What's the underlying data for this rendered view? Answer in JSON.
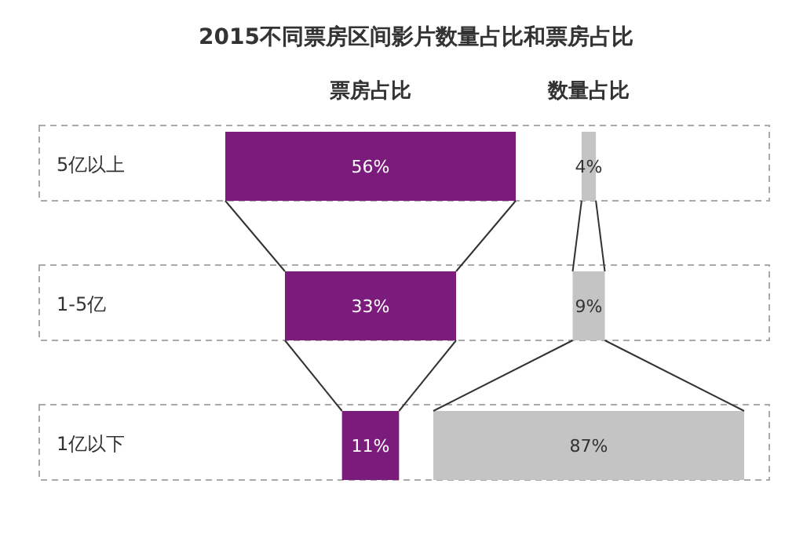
{
  "chart_data": {
    "type": "other",
    "title": "2015不同票房区间影片数量占比和票房占比",
    "categories": [
      "5亿以上",
      "1-5亿",
      "1亿以下"
    ],
    "series": [
      {
        "name": "票房占比",
        "color": "#7b1c7d",
        "values": [
          56,
          33,
          11
        ],
        "value_labels": [
          "56%",
          "33%",
          "11%"
        ]
      },
      {
        "name": "数量占比",
        "color": "#c4c4c4",
        "values": [
          4,
          9,
          87
        ],
        "value_labels": [
          "4%",
          "9%",
          "87%"
        ]
      }
    ]
  }
}
